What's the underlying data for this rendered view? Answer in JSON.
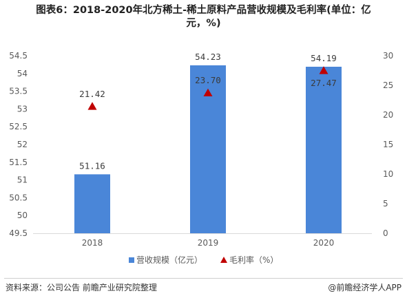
{
  "title": "图表6：2018-2020年北方稀土-稀土原料产品营收规模及毛利率(单位：亿\n元，%)",
  "footer": {
    "source": "资料来源：公司公告 前瞻产业研究院整理",
    "brand": "@前瞻经济学人APP"
  },
  "colors": {
    "bar": "#4a86d8",
    "marker": "#c00000",
    "axis_text": "#595959"
  },
  "chart_data": {
    "type": "bar",
    "categories": [
      "2018",
      "2019",
      "2020"
    ],
    "series": [
      {
        "name": "营收规模（亿元）",
        "type": "bar",
        "axis": "left",
        "values": [
          51.16,
          54.23,
          54.19
        ],
        "labels": [
          "51.16",
          "54.23",
          "54.19"
        ]
      },
      {
        "name": "毛利率（%）",
        "type": "scatter",
        "marker": "triangle",
        "axis": "right",
        "values": [
          21.42,
          23.7,
          27.47
        ],
        "labels": [
          "21.42",
          "23.70",
          "27.47"
        ]
      }
    ],
    "y_left": {
      "min": 49.5,
      "max": 54.5,
      "ticks": [
        "49.5",
        "50",
        "50.5",
        "51",
        "51.5",
        "52",
        "52.5",
        "53",
        "53.5",
        "54",
        "54.5"
      ]
    },
    "y_right": {
      "min": 0,
      "max": 30,
      "ticks": [
        "0",
        "5",
        "10",
        "15",
        "20",
        "25",
        "30"
      ]
    },
    "grid": false,
    "legend": "bottom-center"
  }
}
